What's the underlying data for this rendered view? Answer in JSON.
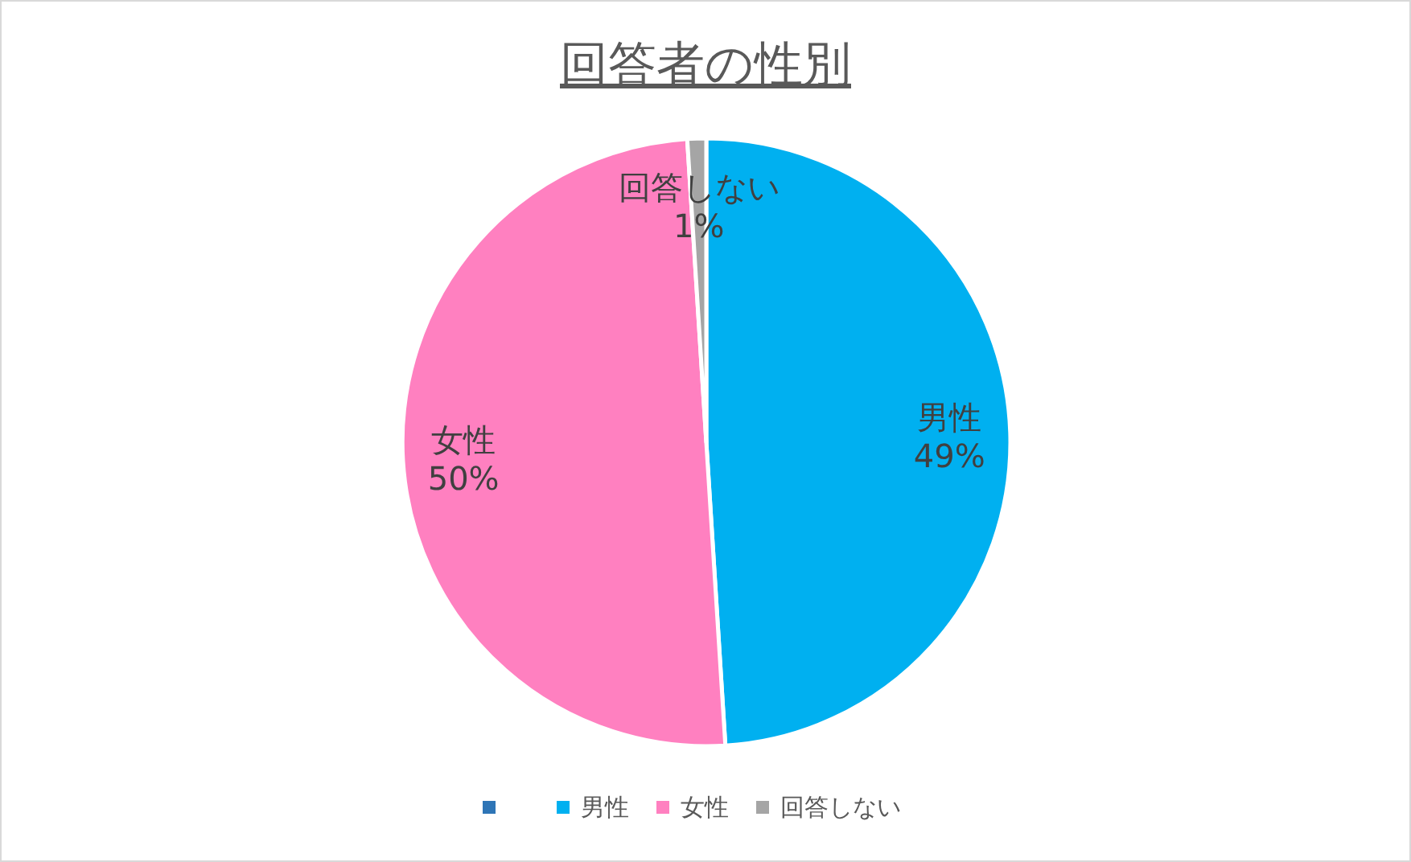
{
  "chart_data": {
    "type": "pie",
    "title": "回答者の性別",
    "categories": [
      null,
      "男性",
      "女性",
      "回答しない"
    ],
    "values": [
      0,
      49,
      50,
      1
    ],
    "colors": [
      "#2e75b6",
      "#00b0f0",
      "#ff80c0",
      "#a5a5a5"
    ],
    "value_labels": [
      null,
      "49%",
      "50%",
      "1%"
    ],
    "legend": "bottom"
  }
}
